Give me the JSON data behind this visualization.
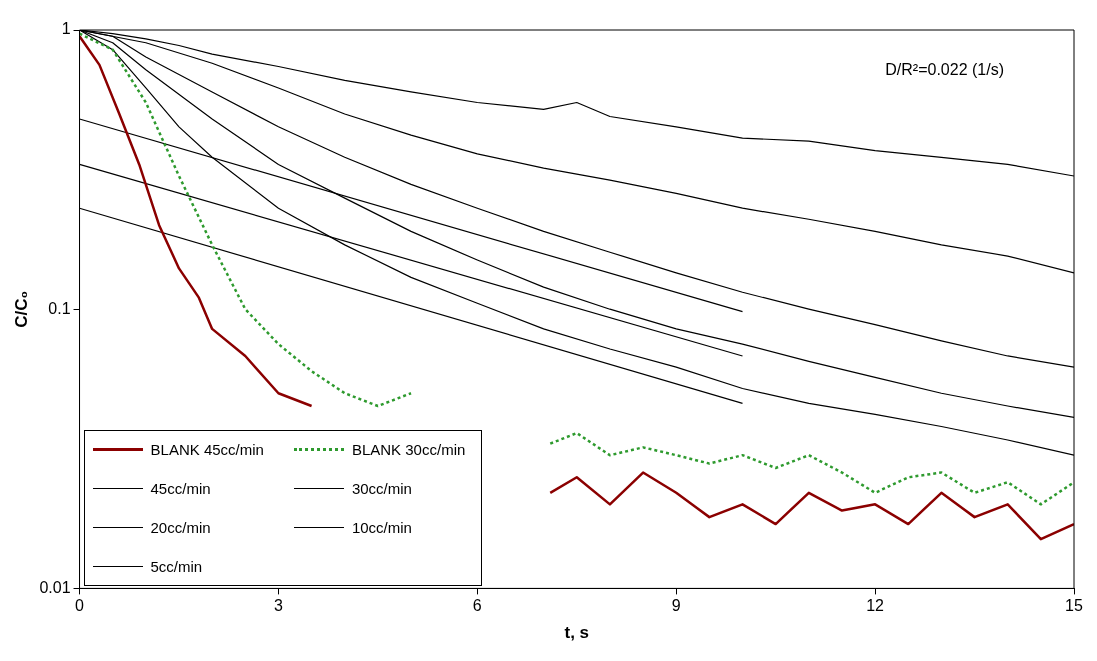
{
  "chart_data": {
    "type": "line",
    "xlabel": "t, s",
    "ylabel": "C/C₀",
    "xlim": [
      0,
      15
    ],
    "xticks": [
      0,
      3,
      6,
      9,
      12,
      15
    ],
    "ylim": [
      0.01,
      1
    ],
    "yticks": [
      0.01,
      0.1,
      1
    ],
    "log": "y",
    "grid": false,
    "legend": "bottom left",
    "marker": "none",
    "annotations": [
      "D/R²=0.022 (1/s)"
    ],
    "series": [
      {
        "name": "BLANK 45cc/min",
        "color": "#8b0000",
        "line_style": "solid",
        "x": [
          0,
          0.3,
          0.6,
          0.9,
          1.2,
          1.5,
          1.8,
          2.0,
          2.5,
          3.0,
          3.5,
          3.7,
          7.1,
          7.5,
          8,
          8.5,
          9,
          9.5,
          10,
          10.5,
          11,
          11.5,
          12,
          12.5,
          13,
          13.5,
          14,
          14.5,
          15
        ],
        "values": [
          0.95,
          0.75,
          0.5,
          0.33,
          0.2,
          0.14,
          0.11,
          0.085,
          0.068,
          0.05,
          0.045,
          null,
          0.022,
          0.025,
          0.02,
          0.026,
          0.022,
          0.018,
          0.02,
          0.017,
          0.022,
          0.019,
          0.02,
          0.017,
          0.022,
          0.018,
          0.02,
          0.015,
          0.017
        ]
      },
      {
        "name": "BLANK 30cc/min",
        "color": "#2e9a2e",
        "line_style": "dotted",
        "x": [
          0,
          0.5,
          1,
          1.5,
          2,
          2.5,
          3,
          3.5,
          4,
          4.5,
          5,
          5.05,
          7.1,
          7.5,
          8,
          8.5,
          9,
          9.5,
          10,
          10.5,
          11,
          11.5,
          12,
          12.5,
          13,
          13.5,
          14,
          14.5,
          15
        ],
        "values": [
          0.97,
          0.85,
          0.55,
          0.3,
          0.17,
          0.1,
          0.075,
          0.06,
          0.05,
          0.045,
          0.05,
          null,
          0.033,
          0.036,
          0.03,
          0.032,
          0.03,
          0.028,
          0.03,
          0.027,
          0.03,
          0.026,
          0.022,
          0.025,
          0.026,
          0.022,
          0.024,
          0.02,
          0.024
        ]
      },
      {
        "name": "45cc/min",
        "color": "#000000",
        "line_style": "solid",
        "x": [
          0,
          0.5,
          1,
          1.5,
          2,
          3,
          4,
          5,
          6,
          7,
          8,
          9,
          10,
          11,
          12,
          13,
          14,
          15
        ],
        "values": [
          1,
          0.85,
          0.62,
          0.45,
          0.35,
          0.23,
          0.17,
          0.13,
          0.105,
          0.085,
          0.072,
          0.062,
          0.052,
          0.046,
          0.042,
          0.038,
          0.034,
          0.03
        ]
      },
      {
        "name": "30cc/min",
        "color": "#000000",
        "line_style": "solid",
        "x": [
          0,
          0.5,
          1,
          2,
          3,
          4,
          5,
          6,
          7,
          8,
          9,
          10,
          11,
          12,
          13,
          14,
          15
        ],
        "values": [
          1,
          0.9,
          0.72,
          0.48,
          0.33,
          0.25,
          0.19,
          0.15,
          0.12,
          0.1,
          0.085,
          0.075,
          0.065,
          0.057,
          0.05,
          0.045,
          0.041
        ]
      },
      {
        "name": "20cc/min",
        "color": "#000000",
        "line_style": "solid",
        "x": [
          0,
          0.5,
          1,
          2,
          3,
          4,
          5,
          6,
          7,
          8,
          9,
          10,
          11,
          12,
          13,
          14,
          15
        ],
        "values": [
          1,
          0.95,
          0.8,
          0.6,
          0.45,
          0.35,
          0.28,
          0.23,
          0.19,
          0.16,
          0.135,
          0.115,
          0.1,
          0.088,
          0.077,
          0.068,
          0.062
        ]
      },
      {
        "name": "10cc/min",
        "color": "#000000",
        "line_style": "solid",
        "x": [
          0,
          1,
          2,
          3,
          4,
          5,
          6,
          7,
          8,
          9,
          10,
          11,
          12,
          13,
          14,
          15
        ],
        "values": [
          1,
          0.9,
          0.76,
          0.62,
          0.5,
          0.42,
          0.36,
          0.32,
          0.29,
          0.26,
          0.23,
          0.21,
          0.19,
          0.17,
          0.155,
          0.135
        ]
      },
      {
        "name": "5cc/min",
        "color": "#000000",
        "line_style": "solid",
        "x": [
          0,
          0.5,
          1,
          1.5,
          2,
          3,
          4,
          5,
          6,
          7,
          7.5,
          8,
          9,
          10,
          11,
          12,
          13,
          14,
          15
        ],
        "values": [
          1,
          0.97,
          0.93,
          0.88,
          0.82,
          0.74,
          0.66,
          0.6,
          0.55,
          0.52,
          0.55,
          0.49,
          0.45,
          0.41,
          0.4,
          0.37,
          0.35,
          0.33,
          0.3
        ]
      },
      {
        "type": "line",
        "color": "#000000",
        "line_style": "solid",
        "x": [
          0,
          10
        ],
        "values": [
          0.48,
          0.098
        ]
      },
      {
        "type": "line",
        "color": "#000000",
        "line_style": "solid",
        "x": [
          0,
          10
        ],
        "values": [
          0.33,
          0.068
        ]
      },
      {
        "type": "line",
        "color": "#000000",
        "line_style": "solid",
        "x": [
          0,
          10
        ],
        "values": [
          0.23,
          0.046
        ]
      }
    ]
  }
}
